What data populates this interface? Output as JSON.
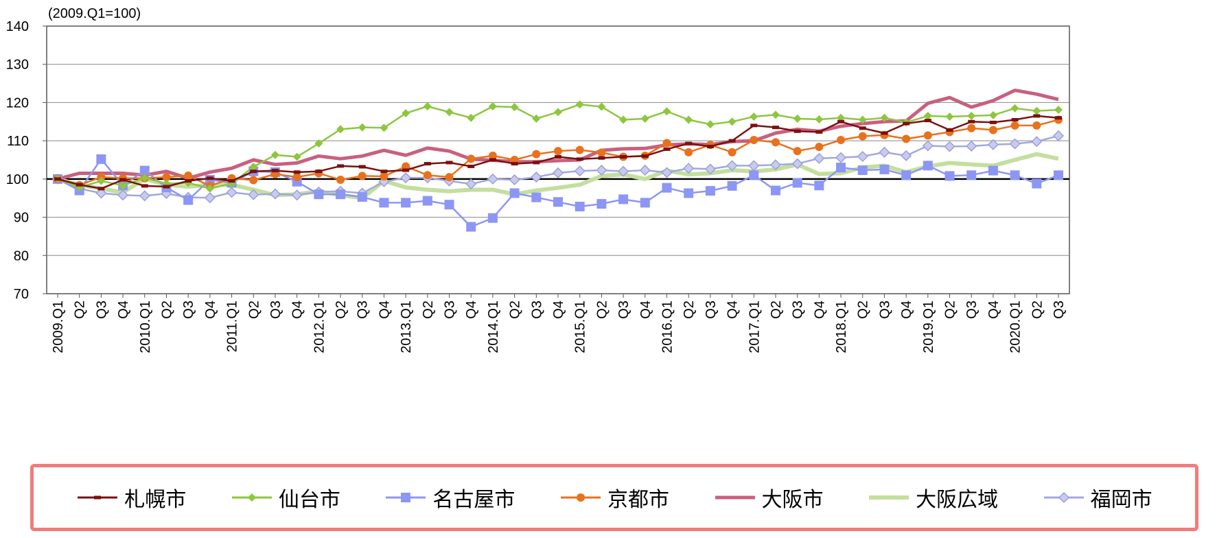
{
  "chart_data": {
    "type": "line",
    "subtitle": "(2009.Q1=100)",
    "ylim": [
      70,
      140
    ],
    "yticks": [
      70,
      80,
      90,
      100,
      110,
      120,
      130,
      140
    ],
    "grid": true,
    "reference_line": 100,
    "legend_position": "bottom",
    "categories": [
      "2009.Q1",
      "Q2",
      "Q3",
      "Q4",
      "2010.Q1",
      "Q2",
      "Q3",
      "Q4",
      "2011.Q1",
      "Q2",
      "Q3",
      "Q4",
      "2012.Q1",
      "Q2",
      "Q3",
      "Q4",
      "2013.Q1",
      "Q2",
      "Q3",
      "Q4",
      "2014.Q1",
      "Q2",
      "Q3",
      "Q4",
      "2015.Q1",
      "Q2",
      "Q3",
      "Q4",
      "2016.Q1",
      "Q2",
      "Q3",
      "Q4",
      "2017.Q1",
      "Q2",
      "Q3",
      "Q4",
      "2018.Q1",
      "Q2",
      "Q3",
      "Q4",
      "2019.Q1",
      "Q2",
      "Q3",
      "Q4",
      "2020.Q1",
      "Q2",
      "Q3"
    ],
    "series": [
      {
        "name": "札幌市",
        "color": "#7b1010",
        "marker": "dash",
        "values": [
          100,
          98.5,
          97.5,
          99.8,
          98.2,
          98,
          99.5,
          100.2,
          99.5,
          102,
          102.2,
          101.8,
          102,
          103.4,
          103.2,
          102,
          102.3,
          104,
          104.3,
          103.3,
          105,
          104,
          104.3,
          105.8,
          105.2,
          105.5,
          105.8,
          106,
          107.8,
          109.3,
          108.5,
          110,
          114,
          113.5,
          112.5,
          112.3,
          115,
          113.3,
          112,
          114.5,
          115.3,
          112.8,
          115,
          114.8,
          115.5,
          116.5,
          116
        ]
      },
      {
        "name": "仙台市",
        "color": "#8dc63f",
        "marker": "diamond",
        "values": [
          100,
          97.8,
          99.5,
          98.3,
          100.3,
          98.8,
          99,
          97.5,
          98.8,
          103.2,
          106.3,
          105.8,
          109.3,
          113,
          113.5,
          113.4,
          117.2,
          119,
          117.5,
          116,
          119,
          118.8,
          115.8,
          117.5,
          119.5,
          118.9,
          115.5,
          115.8,
          117.7,
          115.5,
          114.3,
          115,
          116.3,
          116.8,
          115.8,
          115.6,
          116,
          115.5,
          116,
          114.8,
          116.5,
          116.3,
          116.5,
          116.7,
          118.5,
          117.8,
          118.1
        ]
      },
      {
        "name": "名古屋市",
        "color": "#8c96f4",
        "marker": "square",
        "values": [
          100,
          97,
          105.2,
          98.3,
          102.2,
          97.8,
          94.5,
          99.8,
          99,
          102,
          101.8,
          99.3,
          96,
          96,
          95.3,
          93.8,
          93.8,
          94.3,
          93.3,
          87.5,
          89.8,
          96.3,
          95.2,
          94,
          92.8,
          93.5,
          94.7,
          93.8,
          97.7,
          96.3,
          96.9,
          98.2,
          101,
          97,
          99,
          98.3,
          103,
          102.3,
          102.5,
          101,
          103.5,
          100.8,
          101,
          102.2,
          101,
          98.8,
          101
        ]
      },
      {
        "name": "京都市",
        "color": "#e8711c",
        "marker": "circle",
        "values": [
          100,
          98.4,
          100.5,
          100.2,
          100.2,
          100.5,
          100.9,
          98.2,
          100.2,
          99.7,
          101.3,
          100.5,
          101.5,
          99.8,
          100.8,
          100.7,
          103.3,
          101,
          100.5,
          105.3,
          106.1,
          105,
          106.5,
          107.3,
          107.6,
          106.9,
          105.8,
          106.1,
          109.4,
          107,
          108.9,
          107,
          110.2,
          109.6,
          107.3,
          108.4,
          110.2,
          111.2,
          111.5,
          110.5,
          111.4,
          112.3,
          113.3,
          112.8,
          114,
          114,
          115.5
        ]
      },
      {
        "name": "大阪市",
        "color": "#c9607e",
        "marker": "none",
        "width": 5,
        "values": [
          100,
          101.5,
          101.5,
          101.5,
          101,
          102,
          100.2,
          101.8,
          102.8,
          105,
          103.8,
          104.2,
          106,
          105.3,
          106,
          107.5,
          106.2,
          108.1,
          107.3,
          105.2,
          104.9,
          104.5,
          104.5,
          104.8,
          105,
          107.5,
          107.9,
          108,
          108.9,
          109.2,
          109,
          109.8,
          110,
          112,
          113,
          112.5,
          113.8,
          114.5,
          115,
          115.2,
          119.8,
          121.3,
          118.8,
          120.5,
          123.2,
          122.2,
          120.8
        ]
      },
      {
        "name": "大阪広域",
        "color": "#c3df9e",
        "marker": "none",
        "width": 6,
        "values": [
          100,
          98.5,
          97.5,
          96.5,
          100,
          98.5,
          98,
          98.5,
          98.5,
          97.2,
          95.8,
          96,
          96.8,
          95.8,
          95,
          99.5,
          97.8,
          97.2,
          96.8,
          97.2,
          97.2,
          96,
          97,
          97.7,
          98.5,
          100.8,
          101.2,
          100,
          102.2,
          101.2,
          101.5,
          102.3,
          102,
          102.5,
          103.8,
          101.3,
          101.5,
          103,
          103.5,
          101.8,
          103.3,
          104.2,
          103.8,
          103.5,
          105,
          106.5,
          105.3
        ]
      },
      {
        "name": "福岡市",
        "color": "#a3a7e0",
        "marker": "diamond-outline",
        "values": [
          100,
          97.5,
          96.3,
          95.8,
          95.6,
          96.2,
          95.2,
          95.1,
          96.5,
          95.9,
          96.1,
          95.8,
          96.6,
          96.8,
          96.3,
          99.3,
          100.3,
          100.3,
          99.5,
          98.7,
          100,
          99.8,
          100.5,
          101.6,
          102.1,
          102.3,
          102,
          102.3,
          101.7,
          102.8,
          102.6,
          103.5,
          103.5,
          103.7,
          104,
          105.4,
          105.6,
          105.9,
          107,
          106.1,
          108.7,
          108.5,
          108.6,
          109,
          109.2,
          109.8,
          111.3
        ]
      }
    ]
  }
}
